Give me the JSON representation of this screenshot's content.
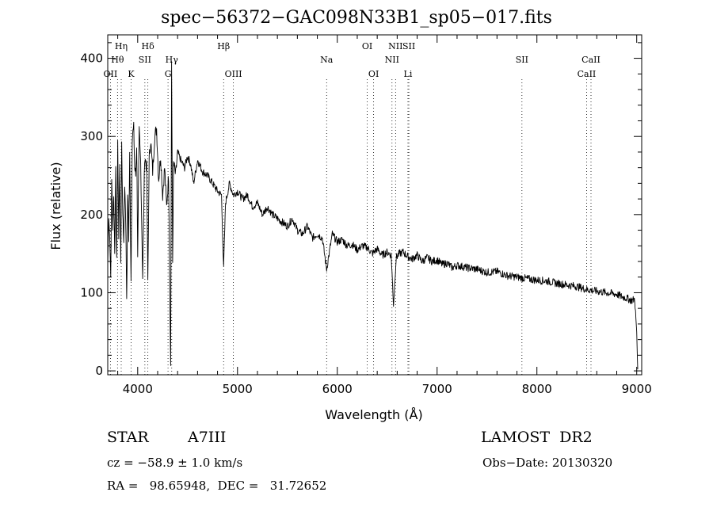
{
  "header": {
    "title": "spec−56372−GAC098N33B1_sp05−017.fits"
  },
  "info": {
    "object_class": "STAR",
    "object_subclass": "A7III",
    "survey": "LAMOST  DR2",
    "redshift": "cz = −58.9 ± 1.0 km/s",
    "obs_date": "Obs−Date: 20130320",
    "coords": "RA =   98.65948,  DEC =   31.72652"
  },
  "chart_data": {
    "type": "line",
    "title": "spec−56372−GAC098N33B1_sp05−017.fits",
    "xlabel": "Wavelength (Å)",
    "ylabel": "Flux (relative)",
    "xlim": [
      3700,
      9050
    ],
    "ylim": [
      -5,
      430
    ],
    "x_ticks": [
      4000,
      5000,
      6000,
      7000,
      8000,
      9000
    ],
    "y_ticks": [
      0,
      100,
      200,
      300,
      400
    ],
    "grid": false,
    "series": [
      {
        "x": [
          3700,
          3710,
          3720,
          3730,
          3740,
          3750,
          3760,
          3770,
          3780,
          3790,
          3800,
          3810,
          3820,
          3830,
          3840,
          3850,
          3860,
          3870,
          3880,
          3890,
          3900,
          3910,
          3920,
          3933,
          3945,
          3960,
          3970,
          3980,
          3990,
          4000,
          4015,
          4030,
          4050,
          4070,
          4090,
          4102,
          4115,
          4130,
          4150,
          4170,
          4190,
          4210,
          4230,
          4250,
          4270,
          4290,
          4310,
          4330,
          4340,
          4350,
          4360,
          4380,
          4400,
          4430,
          4470,
          4500,
          4530,
          4560,
          4600,
          4650,
          4700,
          4750,
          4800,
          4840,
          4861,
          4880,
          4920,
          4960,
          5000,
          5050,
          5100,
          5150,
          5200,
          5250,
          5300,
          5350,
          5400,
          5450,
          5500,
          5550,
          5600,
          5650,
          5700,
          5750,
          5800,
          5850,
          5893,
          5950,
          6000,
          6050,
          6100,
          6150,
          6200,
          6250,
          6300,
          6350,
          6400,
          6450,
          6500,
          6540,
          6563,
          6590,
          6620,
          6660,
          6700,
          6750,
          6800,
          6850,
          6900,
          6950,
          7000,
          7050,
          7100,
          7150,
          7200,
          7300,
          7400,
          7500,
          7600,
          7700,
          7800,
          7900,
          8000,
          8100,
          8200,
          8300,
          8400,
          8500,
          8600,
          8700,
          8800,
          8850,
          8900,
          8950,
          8980,
          9000,
          9010
        ],
        "y": [
          135,
          195,
          170,
          120,
          245,
          180,
          230,
          150,
          260,
          140,
          295,
          175,
          270,
          130,
          285,
          200,
          170,
          240,
          195,
          95,
          230,
          170,
          275,
          120,
          300,
          310,
          260,
          250,
          290,
          150,
          305,
          265,
          120,
          275,
          260,
          115,
          270,
          295,
          255,
          300,
          310,
          245,
          275,
          225,
          260,
          210,
          250,
          5,
          395,
          140,
          265,
          250,
          280,
          270,
          260,
          275,
          265,
          240,
          270,
          255,
          250,
          240,
          230,
          225,
          130,
          215,
          240,
          225,
          230,
          220,
          225,
          210,
          215,
          200,
          210,
          200,
          195,
          190,
          185,
          195,
          180,
          175,
          185,
          170,
          175,
          170,
          130,
          175,
          165,
          168,
          160,
          162,
          155,
          160,
          158,
          150,
          156,
          148,
          152,
          148,
          85,
          145,
          150,
          152,
          147,
          143,
          148,
          140,
          145,
          140,
          142,
          136,
          138,
          132,
          135,
          132,
          130,
          126,
          127,
          122,
          120,
          118,
          116,
          115,
          112,
          110,
          108,
          104,
          102,
          100,
          98,
          95,
          93,
          90,
          92,
          50,
          2
        ]
      }
    ],
    "spectral_lines": [
      {
        "label": "Hη",
        "x": 3835,
        "row": 1
      },
      {
        "label": "Hθ",
        "x": 3798,
        "row": 2
      },
      {
        "label": "OII",
        "x": 3727,
        "row": 3
      },
      {
        "label": "K",
        "x": 3934,
        "row": 3
      },
      {
        "label": "Hδ",
        "x": 4102,
        "row": 1
      },
      {
        "label": "SII",
        "x": 4072,
        "row": 2
      },
      {
        "label": "G",
        "x": 4304,
        "row": 3
      },
      {
        "label": "Hγ",
        "x": 4341,
        "row": 2
      },
      {
        "label": "Hβ",
        "x": 4861,
        "row": 1
      },
      {
        "label": "OIII",
        "x": 4959,
        "row": 3
      },
      {
        "label": "Na",
        "x": 5893,
        "row": 2
      },
      {
        "label": "OI",
        "x": 6300,
        "row": 1
      },
      {
        "label": "OI",
        "x": 6364,
        "row": 3
      },
      {
        "label": "NII",
        "x": 6548,
        "row": 2
      },
      {
        "label": "NII",
        "x": 6584,
        "row": 1
      },
      {
        "label": "SII",
        "x": 6717,
        "row": 1
      },
      {
        "label": "Li",
        "x": 6708,
        "row": 3
      },
      {
        "label": "SII",
        "x": 7850,
        "row": 2
      },
      {
        "label": "CaII",
        "x": 8498,
        "row": 3
      },
      {
        "label": "CaII",
        "x": 8542,
        "row": 2
      }
    ]
  }
}
